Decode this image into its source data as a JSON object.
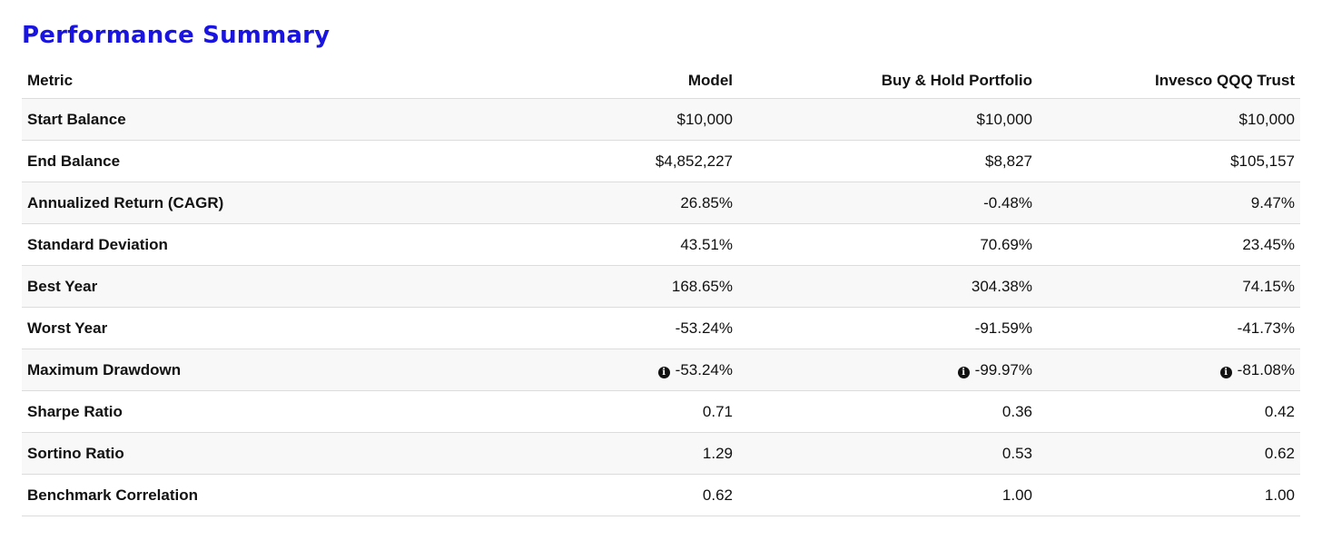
{
  "page_title": "Performance Summary",
  "table": {
    "headers": {
      "metric": "Metric",
      "model": "Model",
      "buy_hold": "Buy & Hold Portfolio",
      "qqq": "Invesco QQQ Trust"
    },
    "rows": [
      {
        "metric": "Start Balance",
        "model": "$10,000",
        "buy_hold": "$10,000",
        "qqq": "$10,000"
      },
      {
        "metric": "End Balance",
        "model": "$4,852,227",
        "buy_hold": "$8,827",
        "qqq": "$105,157"
      },
      {
        "metric": "Annualized Return (CAGR)",
        "model": "26.85%",
        "buy_hold": "-0.48%",
        "qqq": "9.47%"
      },
      {
        "metric": "Standard Deviation",
        "model": "43.51%",
        "buy_hold": "70.69%",
        "qqq": "23.45%"
      },
      {
        "metric": "Best Year",
        "model": "168.65%",
        "buy_hold": "304.38%",
        "qqq": "74.15%"
      },
      {
        "metric": "Worst Year",
        "model": "-53.24%",
        "buy_hold": "-91.59%",
        "qqq": "-41.73%"
      },
      {
        "metric": "Maximum Drawdown",
        "model": "-53.24%",
        "buy_hold": "-99.97%",
        "qqq": "-81.08%",
        "info_icon": "info-circle-icon"
      },
      {
        "metric": "Sharpe Ratio",
        "model": "0.71",
        "buy_hold": "0.36",
        "qqq": "0.42"
      },
      {
        "metric": "Sortino Ratio",
        "model": "1.29",
        "buy_hold": "0.53",
        "qqq": "0.62"
      },
      {
        "metric": "Benchmark Correlation",
        "model": "0.62",
        "buy_hold": "1.00",
        "qqq": "1.00"
      }
    ]
  },
  "colors": {
    "title": "#1a14e0",
    "row_stripe": "#f8f8f8",
    "border": "#dcdcdc"
  }
}
